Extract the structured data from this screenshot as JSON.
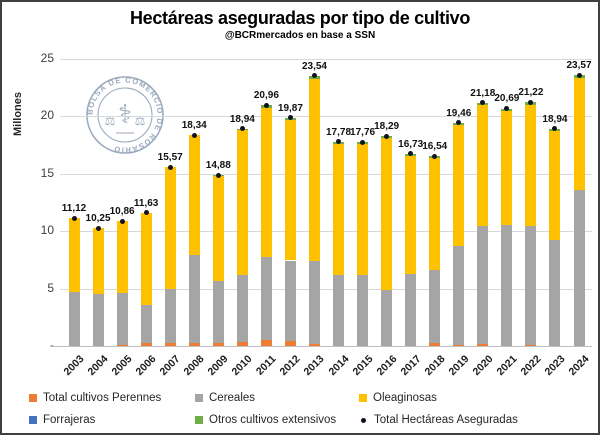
{
  "title": "Hectáreas aseguradas por tipo de cultivo",
  "subtitle": "@BCRmercados en base a SSN",
  "watermark": {
    "text": "BOLSA DE COMERCIO DE ROSARIO"
  },
  "y_axis": {
    "label": "Millones",
    "ticks": [
      {
        "text": "25",
        "value": 25
      },
      {
        "text": "20",
        "value": 20
      },
      {
        "text": "15",
        "value": 15
      },
      {
        "text": "10",
        "value": 10
      },
      {
        "text": "5",
        "value": 5
      },
      {
        "text": "-",
        "value": 0
      }
    ]
  },
  "legend": {
    "items": [
      {
        "label": "Total cultivos Perennes",
        "color": "#ED7D31",
        "marker": "square"
      },
      {
        "label": "Cereales",
        "color": "#A5A5A5",
        "marker": "square"
      },
      {
        "label": "Oleaginosas",
        "color": "#FFC000",
        "marker": "square"
      },
      {
        "label": "Forrajeras",
        "color": "#4472C4",
        "marker": "square"
      },
      {
        "label": "Otros cultivos extensivos",
        "color": "#70AD47",
        "marker": "square"
      },
      {
        "label": "Total Hectáreas Aseguradas",
        "color": "#11131f",
        "marker": "dot"
      }
    ]
  },
  "chart_data": {
    "type": "bar",
    "stacked": true,
    "title": "Hectáreas aseguradas por tipo de cultivo",
    "subtitle": "@BCRmercados en base a SSN",
    "ylabel": "Millones",
    "ylim": [
      0,
      25
    ],
    "grid": true,
    "legend_position": "bottom",
    "categories": [
      "2003",
      "2004",
      "2005",
      "2006",
      "2007",
      "2008",
      "2009",
      "2010",
      "2011",
      "2012",
      "2013",
      "2014",
      "2015",
      "2016",
      "2017",
      "2018",
      "2019",
      "2020",
      "2021",
      "2022",
      "2023",
      "2024"
    ],
    "series": [
      {
        "name": "Total cultivos Perennes",
        "color": "#ED7D31",
        "values": [
          0,
          0,
          0.1,
          0.3,
          0.3,
          0.3,
          0.3,
          0.35,
          0.55,
          0.4,
          0.15,
          0,
          0,
          0,
          0,
          0.25,
          0.1,
          0.2,
          0,
          0.1,
          0,
          0
        ]
      },
      {
        "name": "Cereales",
        "color": "#A5A5A5",
        "values": [
          4.7,
          4.5,
          4.55,
          3.3,
          4.65,
          7.65,
          5.35,
          5.8,
          7.2,
          7.05,
          7.25,
          6.2,
          6.2,
          4.85,
          6.3,
          6.4,
          8.6,
          10.25,
          10.55,
          10.35,
          9.2,
          13.6
        ]
      },
      {
        "name": "Oleaginosas",
        "color": "#FFC000",
        "values": [
          6.42,
          5.75,
          6.21,
          8.03,
          10.62,
          10.39,
          9.13,
          12.69,
          13.01,
          12.22,
          15.89,
          11.38,
          11.36,
          13.24,
          10.28,
          9.74,
          10.56,
          10.53,
          9.94,
          10.57,
          9.54,
          9.77
        ]
      },
      {
        "name": "Forrajeras",
        "color": "#4472C4",
        "values": [
          0,
          0,
          0,
          0,
          0,
          0,
          0,
          0,
          0,
          0,
          0,
          0,
          0,
          0,
          0,
          0,
          0,
          0,
          0,
          0,
          0,
          0
        ]
      },
      {
        "name": "Otros cultivos extensivos",
        "color": "#70AD47",
        "values": [
          0,
          0,
          0,
          0,
          0,
          0,
          0.1,
          0.1,
          0.2,
          0.2,
          0.25,
          0.2,
          0.2,
          0.2,
          0.15,
          0.15,
          0.2,
          0.2,
          0.2,
          0.2,
          0.2,
          0.2
        ]
      }
    ],
    "totals": [
      11.12,
      10.25,
      10.86,
      11.63,
      15.57,
      18.34,
      14.88,
      18.94,
      20.96,
      19.87,
      23.54,
      17.78,
      17.76,
      18.29,
      16.73,
      16.54,
      19.46,
      21.18,
      20.69,
      21.22,
      18.94,
      23.57
    ],
    "total_labels": [
      "11,12",
      "10,25",
      "10,86",
      "11,63",
      "15,57",
      "18,34",
      "14,88",
      "18,94",
      "20,96",
      "19,87",
      "23,54",
      "17,78",
      "17,76",
      "18,29",
      "16,73",
      "16,54",
      "19,46",
      "21,18",
      "20,69",
      "21,22",
      "18,94",
      "23,57"
    ],
    "total_marker_color": "#11131f",
    "total_marker_name": "Total Hectáreas Aseguradas"
  }
}
